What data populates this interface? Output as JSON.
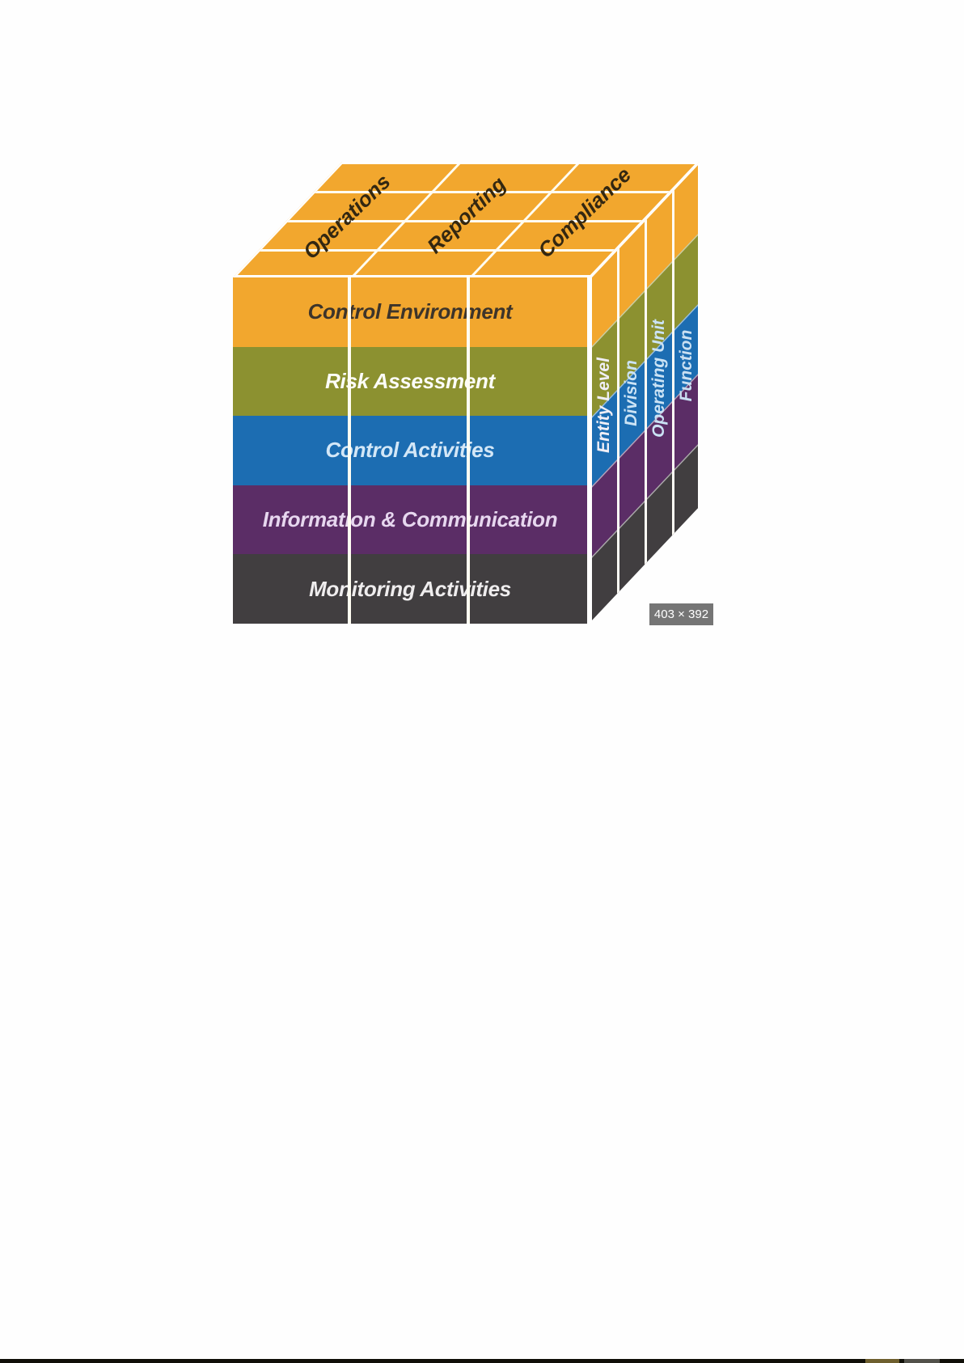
{
  "figure": {
    "name": "COSO internal control cube",
    "top_labels": [
      "Operations",
      "Reporting",
      "Compliance"
    ],
    "front_rows": [
      {
        "label": "Control Environment",
        "color": "#F2A72E",
        "text_color": "#3D342A"
      },
      {
        "label": "Risk Assessment",
        "color": "#8C9130",
        "text_color": "#FDFDF8"
      },
      {
        "label": "Control Activities",
        "color": "#1C6DB2",
        "text_color": "#D3E7F7"
      },
      {
        "label": "Information & Communication",
        "color": "#5B2D66",
        "text_color": "#E7D7EF"
      },
      {
        "label": "Monitoring Activities",
        "color": "#413E40",
        "text_color": "#EFEDEE"
      }
    ],
    "side_columns": [
      {
        "label": "Entity Level",
        "text_color": "#F0EFF6"
      },
      {
        "label": "Division",
        "text_color": "#CBE3F5"
      },
      {
        "label": "Operating Unit",
        "text_color": "#CBE3F5"
      },
      {
        "label": "Function",
        "text_color": "#C9DFF2"
      }
    ],
    "grid_line_color": "#FFFFFF"
  },
  "badge": {
    "label": "403 × 392",
    "bg": "#757575",
    "text_color": "#FFFFFF"
  }
}
